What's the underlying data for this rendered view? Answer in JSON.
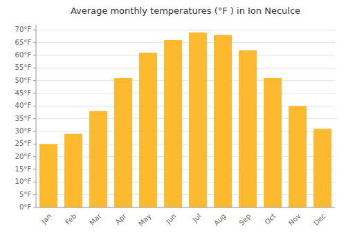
{
  "chart_data": {
    "type": "bar",
    "title": "Average monthly temperatures (°F ) in Ion Neculce",
    "categories": [
      "Jan",
      "Feb",
      "Mar",
      "Apr",
      "May",
      "Jun",
      "Jul",
      "Aug",
      "Sep",
      "Oct",
      "Nov",
      "Dec"
    ],
    "values": [
      25,
      29,
      38,
      51,
      61,
      66,
      69,
      68,
      62,
      51,
      40,
      31
    ],
    "color": "#FDBA2E",
    "ylim": [
      0,
      72
    ],
    "yticks": [
      {
        "value": 0,
        "label": "0°F"
      },
      {
        "value": 5,
        "label": "5°F"
      },
      {
        "value": 10,
        "label": "10°F"
      },
      {
        "value": 15,
        "label": "15°F"
      },
      {
        "value": 20,
        "label": "20°F"
      },
      {
        "value": 25,
        "label": "25°F"
      },
      {
        "value": 30,
        "label": "30°F"
      },
      {
        "value": 35,
        "label": "35°F"
      },
      {
        "value": 40,
        "label": "40°F"
      },
      {
        "value": 45,
        "label": "45°F"
      },
      {
        "value": 50,
        "label": "50°F"
      },
      {
        "value": 55,
        "label": "55°F"
      },
      {
        "value": 60,
        "label": "60°F"
      },
      {
        "value": 65,
        "label": "65°F"
      },
      {
        "value": 70,
        "label": "70°F"
      }
    ],
    "grid": true
  }
}
